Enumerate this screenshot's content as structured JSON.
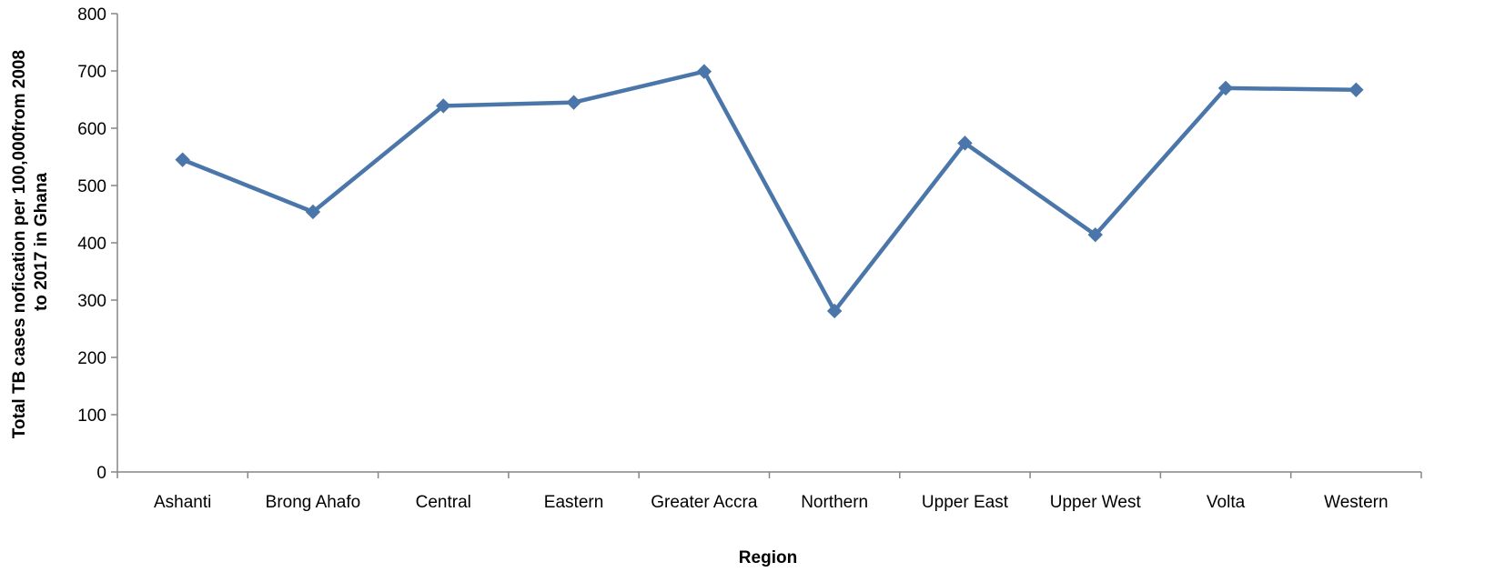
{
  "chart_data": {
    "type": "line",
    "title": "",
    "xlabel": "Region",
    "ylabel": {
      "line1": "Total TB cases  nofication  per 100,000from 2008",
      "line2": "to 2017 in Ghana"
    },
    "categories": [
      "Ashanti",
      "Brong Ahafo",
      "Central",
      "Eastern",
      "Greater Accra",
      "Northern",
      "Upper East",
      "Upper West",
      "Volta",
      "Western"
    ],
    "series": [
      {
        "values": [
          545,
          454,
          639,
          645,
          699,
          281,
          574,
          414,
          670,
          667
        ],
        "color": "#4a76aa",
        "marker": "diamond"
      }
    ],
    "ylim": [
      0,
      800
    ],
    "yticks": [
      0,
      100,
      200,
      300,
      400,
      500,
      600,
      700,
      800
    ],
    "grid": false,
    "legend": "none"
  }
}
